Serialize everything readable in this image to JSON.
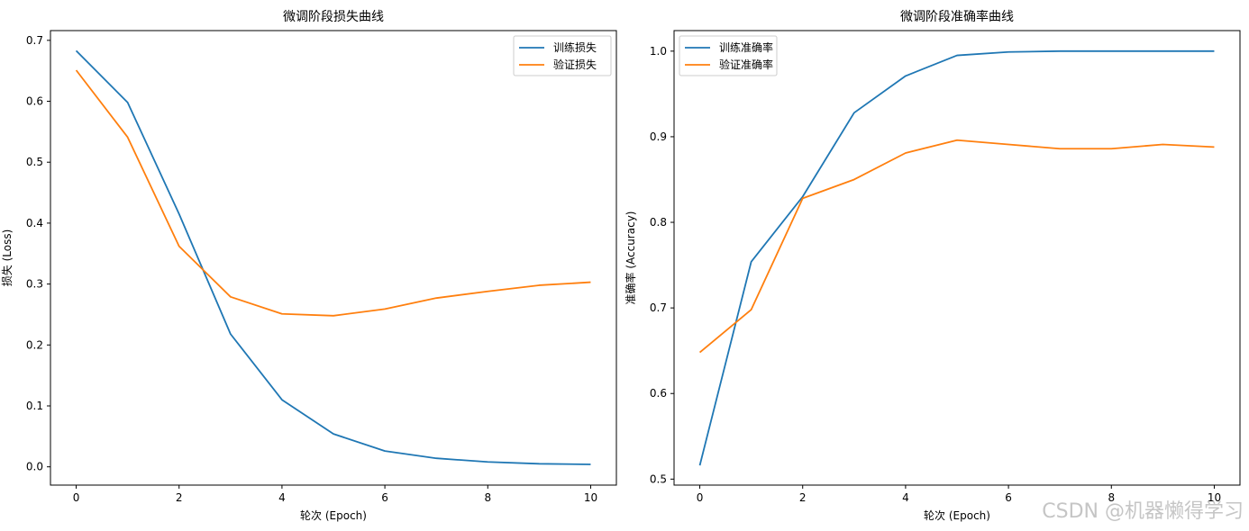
{
  "colors": {
    "train": "#1f77b4",
    "val": "#ff7f0e",
    "axis": "#000000"
  },
  "watermark": "CSDN @机器懒得学习",
  "chart_data": [
    {
      "type": "line",
      "title": "微调阶段损失曲线",
      "xlabel": "轮次 (Epoch)",
      "ylabel": "损失 (Loss)",
      "xlim": [
        -0.5,
        10.5
      ],
      "ylim": [
        -0.03,
        0.716
      ],
      "xticks": [
        0,
        2,
        4,
        6,
        8,
        10
      ],
      "yticks": [
        0.0,
        0.1,
        0.2,
        0.3,
        0.4,
        0.5,
        0.6,
        0.7
      ],
      "ytick_labels": [
        "0.0",
        "0.1",
        "0.2",
        "0.3",
        "0.4",
        "0.5",
        "0.6",
        "0.7"
      ],
      "grid": false,
      "legend": "top-right",
      "x": [
        0,
        1,
        2,
        3,
        4,
        5,
        6,
        7,
        8,
        9,
        10
      ],
      "series": [
        {
          "name": "训练损失",
          "color_key": "train",
          "values": [
            0.683,
            0.598,
            0.415,
            0.218,
            0.11,
            0.054,
            0.026,
            0.014,
            0.008,
            0.005,
            0.004
          ]
        },
        {
          "name": "验证损失",
          "color_key": "val",
          "values": [
            0.651,
            0.541,
            0.362,
            0.279,
            0.251,
            0.248,
            0.259,
            0.277,
            0.288,
            0.298,
            0.303
          ]
        }
      ]
    },
    {
      "type": "line",
      "title": "微调阶段准确率曲线",
      "xlabel": "轮次 (Epoch)",
      "ylabel": "准确率 (Accuracy)",
      "xlim": [
        -0.5,
        10.5
      ],
      "ylim": [
        0.493,
        1.024
      ],
      "xticks": [
        0,
        2,
        4,
        6,
        8,
        10
      ],
      "yticks": [
        0.5,
        0.6,
        0.7,
        0.8,
        0.9,
        1.0
      ],
      "ytick_labels": [
        "0.5",
        "0.6",
        "0.7",
        "0.8",
        "0.9",
        "1.0"
      ],
      "grid": false,
      "legend": "top-left",
      "x": [
        0,
        1,
        2,
        3,
        4,
        5,
        6,
        7,
        8,
        9,
        10
      ],
      "series": [
        {
          "name": "训练准确率",
          "color_key": "train",
          "values": [
            0.516,
            0.754,
            0.83,
            0.928,
            0.971,
            0.995,
            0.999,
            1.0,
            1.0,
            1.0,
            1.0
          ]
        },
        {
          "name": "验证准确率",
          "color_key": "val",
          "values": [
            0.648,
            0.698,
            0.828,
            0.85,
            0.881,
            0.896,
            0.891,
            0.886,
            0.886,
            0.891,
            0.888
          ]
        }
      ]
    }
  ]
}
